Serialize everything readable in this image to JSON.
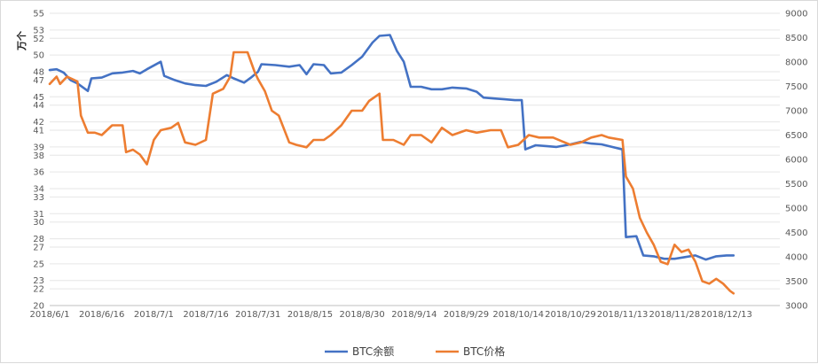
{
  "chart_data": {
    "type": "line",
    "title": "",
    "xlabel": "",
    "ylabel_left": "万个",
    "ylabel_right": "",
    "x_tick_labels": [
      "2018/6/1",
      "2018/6/16",
      "2018/7/1",
      "2018/7/16",
      "2018/7/31",
      "2018/8/15",
      "2018/8/30",
      "2018/9/14",
      "2018/9/29",
      "2018/10/14",
      "2018/10/29",
      "2018/11/13",
      "2018/11/28",
      "2018/12/13"
    ],
    "y_left_ticks": [
      20,
      22,
      23,
      25,
      27,
      28,
      30,
      31,
      33,
      34,
      36,
      38,
      39,
      41,
      42,
      44,
      45,
      47,
      48,
      50,
      52,
      53,
      55
    ],
    "y_left_tick_labels": [
      "20",
      "22",
      "23",
      "25",
      "27",
      "28",
      "30",
      "31",
      "33",
      "34",
      "36",
      "38",
      "39",
      "41",
      "42",
      "44",
      "45",
      "47",
      "48",
      "50",
      "52",
      "53",
      "55"
    ],
    "y_left_lim": [
      20,
      55
    ],
    "y_right_ticks": [
      3000,
      3500,
      4000,
      4500,
      5000,
      5500,
      6000,
      6500,
      7000,
      7500,
      8000,
      8500,
      9000
    ],
    "y_right_tick_labels": [
      "3000",
      "3500",
      "4000",
      "4500",
      "5000",
      "5500",
      "6000",
      "6500",
      "7000",
      "7500",
      "8000",
      "8500",
      "9000"
    ],
    "y_right_lim": [
      3000,
      9000
    ],
    "grid": "horizontal",
    "legend_position": "bottom",
    "series": [
      {
        "name": "BTC余额",
        "axis": "left",
        "color": "#4472c4",
        "points": [
          [
            "2018/6/1",
            48.2
          ],
          [
            "2018/6/3",
            48.3
          ],
          [
            "2018/6/5",
            47.9
          ],
          [
            "2018/6/7",
            47.0
          ],
          [
            "2018/6/9",
            46.6
          ],
          [
            "2018/6/12",
            45.7
          ],
          [
            "2018/6/13",
            47.2
          ],
          [
            "2018/6/16",
            47.3
          ],
          [
            "2018/6/19",
            47.8
          ],
          [
            "2018/6/22",
            47.9
          ],
          [
            "2018/6/25",
            48.1
          ],
          [
            "2018/6/27",
            47.8
          ],
          [
            "2018/6/29",
            48.3
          ],
          [
            "2018/7/3",
            49.2
          ],
          [
            "2018/7/4",
            47.5
          ],
          [
            "2018/7/7",
            47.0
          ],
          [
            "2018/7/10",
            46.6
          ],
          [
            "2018/7/13",
            46.4
          ],
          [
            "2018/7/16",
            46.3
          ],
          [
            "2018/7/19",
            46.8
          ],
          [
            "2018/7/22",
            47.6
          ],
          [
            "2018/7/24",
            47.2
          ],
          [
            "2018/7/27",
            46.7
          ],
          [
            "2018/7/29",
            47.3
          ],
          [
            "2018/7/31",
            48.0
          ],
          [
            "2018/8/1",
            48.9
          ],
          [
            "2018/8/5",
            48.8
          ],
          [
            "2018/8/9",
            48.6
          ],
          [
            "2018/8/12",
            48.8
          ],
          [
            "2018/8/14",
            47.7
          ],
          [
            "2018/8/16",
            48.9
          ],
          [
            "2018/8/19",
            48.8
          ],
          [
            "2018/8/21",
            47.8
          ],
          [
            "2018/8/24",
            47.9
          ],
          [
            "2018/8/27",
            48.8
          ],
          [
            "2018/8/30",
            49.8
          ],
          [
            "2018/9/2",
            51.5
          ],
          [
            "2018/9/4",
            52.3
          ],
          [
            "2018/9/7",
            52.4
          ],
          [
            "2018/9/9",
            50.5
          ],
          [
            "2018/9/11",
            49.2
          ],
          [
            "2018/9/13",
            46.2
          ],
          [
            "2018/9/16",
            46.2
          ],
          [
            "2018/9/19",
            45.9
          ],
          [
            "2018/9/22",
            45.9
          ],
          [
            "2018/9/25",
            46.1
          ],
          [
            "2018/9/29",
            46.0
          ],
          [
            "2018/10/2",
            45.6
          ],
          [
            "2018/10/4",
            44.9
          ],
          [
            "2018/10/7",
            44.8
          ],
          [
            "2018/10/10",
            44.7
          ],
          [
            "2018/10/13",
            44.6
          ],
          [
            "2018/10/15",
            44.6
          ],
          [
            "2018/10/16",
            38.7
          ],
          [
            "2018/10/19",
            39.2
          ],
          [
            "2018/10/22",
            39.1
          ],
          [
            "2018/10/25",
            39.0
          ],
          [
            "2018/10/29",
            39.3
          ],
          [
            "2018/11/1",
            39.6
          ],
          [
            "2018/11/4",
            39.4
          ],
          [
            "2018/11/7",
            39.3
          ],
          [
            "2018/11/10",
            39.0
          ],
          [
            "2018/11/13",
            38.7
          ],
          [
            "2018/11/14",
            28.2
          ],
          [
            "2018/11/17",
            28.3
          ],
          [
            "2018/11/19",
            26.0
          ],
          [
            "2018/11/22",
            25.9
          ],
          [
            "2018/11/25",
            25.6
          ],
          [
            "2018/11/28",
            25.6
          ],
          [
            "2018/12/1",
            25.8
          ],
          [
            "2018/12/4",
            26.0
          ],
          [
            "2018/12/7",
            25.5
          ],
          [
            "2018/12/10",
            25.9
          ],
          [
            "2018/12/13",
            26.0
          ],
          [
            "2018/12/15",
            26.0
          ]
        ]
      },
      {
        "name": "BTC价格",
        "axis": "right",
        "color": "#ed7d31",
        "points": [
          [
            "2018/6/1",
            7550
          ],
          [
            "2018/6/3",
            7700
          ],
          [
            "2018/6/4",
            7550
          ],
          [
            "2018/6/6",
            7700
          ],
          [
            "2018/6/9",
            7600
          ],
          [
            "2018/6/10",
            6900
          ],
          [
            "2018/6/12",
            6550
          ],
          [
            "2018/6/14",
            6550
          ],
          [
            "2018/6/16",
            6500
          ],
          [
            "2018/6/19",
            6700
          ],
          [
            "2018/6/22",
            6700
          ],
          [
            "2018/6/23",
            6150
          ],
          [
            "2018/6/25",
            6200
          ],
          [
            "2018/6/27",
            6100
          ],
          [
            "2018/6/29",
            5900
          ],
          [
            "2018/7/1",
            6400
          ],
          [
            "2018/7/3",
            6600
          ],
          [
            "2018/7/6",
            6650
          ],
          [
            "2018/7/8",
            6750
          ],
          [
            "2018/7/10",
            6350
          ],
          [
            "2018/7/13",
            6300
          ],
          [
            "2018/7/16",
            6400
          ],
          [
            "2018/7/18",
            7350
          ],
          [
            "2018/7/21",
            7450
          ],
          [
            "2018/7/23",
            7700
          ],
          [
            "2018/7/24",
            8200
          ],
          [
            "2018/7/26",
            8200
          ],
          [
            "2018/7/28",
            8200
          ],
          [
            "2018/7/30",
            7800
          ],
          [
            "2018/7/31",
            7650
          ],
          [
            "2018/8/2",
            7400
          ],
          [
            "2018/8/4",
            7000
          ],
          [
            "2018/8/6",
            6900
          ],
          [
            "2018/8/9",
            6350
          ],
          [
            "2018/8/11",
            6300
          ],
          [
            "2018/8/14",
            6250
          ],
          [
            "2018/8/16",
            6400
          ],
          [
            "2018/8/19",
            6400
          ],
          [
            "2018/8/21",
            6500
          ],
          [
            "2018/8/24",
            6700
          ],
          [
            "2018/8/27",
            7000
          ],
          [
            "2018/8/30",
            7000
          ],
          [
            "2018/9/1",
            7200
          ],
          [
            "2018/9/4",
            7350
          ],
          [
            "2018/9/5",
            6400
          ],
          [
            "2018/9/8",
            6400
          ],
          [
            "2018/9/11",
            6300
          ],
          [
            "2018/9/13",
            6500
          ],
          [
            "2018/9/16",
            6500
          ],
          [
            "2018/9/19",
            6350
          ],
          [
            "2018/9/22",
            6650
          ],
          [
            "2018/9/25",
            6500
          ],
          [
            "2018/9/29",
            6600
          ],
          [
            "2018/10/2",
            6550
          ],
          [
            "2018/10/6",
            6600
          ],
          [
            "2018/10/9",
            6600
          ],
          [
            "2018/10/11",
            6250
          ],
          [
            "2018/10/14",
            6300
          ],
          [
            "2018/10/17",
            6500
          ],
          [
            "2018/10/20",
            6450
          ],
          [
            "2018/10/24",
            6450
          ],
          [
            "2018/10/29",
            6300
          ],
          [
            "2018/11/1",
            6350
          ],
          [
            "2018/11/4",
            6450
          ],
          [
            "2018/11/7",
            6500
          ],
          [
            "2018/11/9",
            6450
          ],
          [
            "2018/11/13",
            6400
          ],
          [
            "2018/11/14",
            5650
          ],
          [
            "2018/11/16",
            5400
          ],
          [
            "2018/11/18",
            4800
          ],
          [
            "2018/11/20",
            4500
          ],
          [
            "2018/11/22",
            4250
          ],
          [
            "2018/11/24",
            3900
          ],
          [
            "2018/11/26",
            3850
          ],
          [
            "2018/11/28",
            4250
          ],
          [
            "2018/11/30",
            4100
          ],
          [
            "2018/12/2",
            4150
          ],
          [
            "2018/12/4",
            3900
          ],
          [
            "2018/12/6",
            3500
          ],
          [
            "2018/12/8",
            3450
          ],
          [
            "2018/12/10",
            3550
          ],
          [
            "2018/12/12",
            3450
          ],
          [
            "2018/12/14",
            3300
          ],
          [
            "2018/12/15",
            3250
          ]
        ]
      }
    ]
  }
}
